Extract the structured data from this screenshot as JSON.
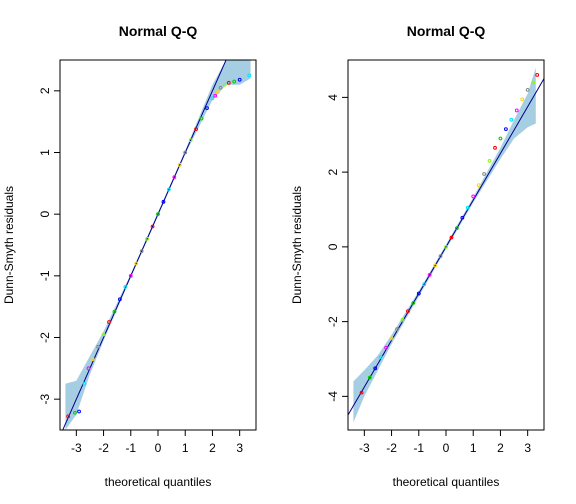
{
  "colors": {
    "band": "#a6cee3",
    "line": "#00008b",
    "points": [
      "#ff0000",
      "#00cc00",
      "#0000ff",
      "#00e5ff",
      "#ff00ff",
      "#ffd700",
      "#888888",
      "#7fff00"
    ]
  },
  "chart_data": [
    {
      "type": "scatter",
      "title": "Normal Q-Q",
      "xlabel": "theoretical quantiles",
      "ylabel": "Dunn-Smyth residuals",
      "xlim": [
        -3.6,
        3.6
      ],
      "ylim": [
        -3.5,
        2.5
      ],
      "xticks": [
        -3,
        -2,
        -1,
        0,
        1,
        2,
        3
      ],
      "yticks": [
        -3,
        -2,
        -1,
        0,
        1,
        2
      ],
      "xtick_labels": [
        "-3",
        "-2",
        "-1",
        "0",
        "1",
        "2",
        "3"
      ],
      "ytick_labels": [
        "-3",
        "-2",
        "-1",
        "0",
        "1",
        "2"
      ],
      "reference_line": {
        "intercept": 0.0,
        "slope": 1.0
      },
      "envelope": [
        {
          "x": -3.4,
          "lo": -3.5,
          "hi": -2.75
        },
        {
          "x": -3.0,
          "lo": -3.25,
          "hi": -2.7
        },
        {
          "x": -2.5,
          "lo": -2.6,
          "hi": -2.3
        },
        {
          "x": -2.0,
          "lo": -2.05,
          "hi": -1.9
        },
        {
          "x": -1.0,
          "lo": -1.03,
          "hi": -0.97
        },
        {
          "x": 0.0,
          "lo": -0.03,
          "hi": 0.03
        },
        {
          "x": 1.0,
          "lo": 0.97,
          "hi": 1.03
        },
        {
          "x": 2.0,
          "lo": 1.85,
          "hi": 2.1
        },
        {
          "x": 2.5,
          "lo": 2.1,
          "hi": 2.5
        },
        {
          "x": 3.0,
          "lo": 2.1,
          "hi": 2.5
        },
        {
          "x": 3.4,
          "lo": 2.2,
          "hi": 2.5
        }
      ],
      "points": {
        "x": [
          -3.3,
          -3.05,
          -2.9,
          -2.7,
          -2.55,
          -2.4,
          -2.2,
          -2.0,
          -1.8,
          -1.6,
          -1.4,
          -1.2,
          -1.0,
          -0.8,
          -0.6,
          -0.4,
          -0.2,
          0.0,
          0.2,
          0.4,
          0.6,
          0.8,
          1.0,
          1.2,
          1.4,
          1.6,
          1.8,
          2.0,
          2.1,
          2.2,
          2.3,
          2.45,
          2.6,
          2.8,
          3.0,
          3.35
        ],
        "y": [
          -3.28,
          -3.22,
          -3.2,
          -2.75,
          -2.5,
          -2.35,
          -2.15,
          -1.95,
          -1.75,
          -1.58,
          -1.38,
          -1.18,
          -1.0,
          -0.8,
          -0.6,
          -0.4,
          -0.2,
          0.0,
          0.2,
          0.4,
          0.6,
          0.8,
          1.0,
          1.2,
          1.38,
          1.55,
          1.72,
          1.88,
          1.92,
          1.98,
          2.05,
          2.1,
          2.13,
          2.15,
          2.18,
          2.25
        ]
      }
    },
    {
      "type": "scatter",
      "title": "Normal Q-Q",
      "xlabel": "theoretical quantiles",
      "ylabel": "Dunn-Smyth residuals",
      "xlim": [
        -3.6,
        3.6
      ],
      "ylim": [
        -4.9,
        5.0
      ],
      "xticks": [
        -3,
        -2,
        -1,
        0,
        1,
        2,
        3
      ],
      "yticks": [
        -4,
        -2,
        0,
        2,
        4
      ],
      "xtick_labels": [
        "-3",
        "-2",
        "-1",
        "0",
        "1",
        "2",
        "3"
      ],
      "ytick_labels": [
        "-4",
        "-2",
        "0",
        "2",
        "4"
      ],
      "reference_line": {
        "intercept": 0.0,
        "slope": 1.25
      },
      "envelope": [
        {
          "x": -3.4,
          "lo": -4.7,
          "hi": -3.6
        },
        {
          "x": -3.0,
          "lo": -4.0,
          "hi": -3.3
        },
        {
          "x": -2.5,
          "lo": -3.3,
          "hi": -2.9
        },
        {
          "x": -2.0,
          "lo": -2.6,
          "hi": -2.35
        },
        {
          "x": -1.0,
          "lo": -1.33,
          "hi": -1.18
        },
        {
          "x": 0.0,
          "lo": -0.06,
          "hi": 0.06
        },
        {
          "x": 1.0,
          "lo": 1.18,
          "hi": 1.33
        },
        {
          "x": 2.0,
          "lo": 2.35,
          "hi": 2.65
        },
        {
          "x": 2.5,
          "lo": 2.9,
          "hi": 3.4
        },
        {
          "x": 3.0,
          "lo": 3.2,
          "hi": 4.1
        },
        {
          "x": 3.3,
          "lo": 3.3,
          "hi": 4.8
        }
      ],
      "points": {
        "x": [
          -3.1,
          -2.8,
          -2.6,
          -2.4,
          -2.2,
          -2.0,
          -1.8,
          -1.6,
          -1.4,
          -1.2,
          -1.0,
          -0.8,
          -0.6,
          -0.4,
          -0.2,
          0.0,
          0.2,
          0.4,
          0.6,
          0.8,
          1.0,
          1.2,
          1.4,
          1.6,
          1.8,
          2.0,
          2.2,
          2.4,
          2.6,
          2.8,
          3.0,
          3.2,
          3.35
        ],
        "y": [
          -3.9,
          -3.5,
          -3.25,
          -2.95,
          -2.7,
          -2.45,
          -2.2,
          -1.95,
          -1.72,
          -1.5,
          -1.25,
          -1.0,
          -0.75,
          -0.5,
          -0.25,
          0.0,
          0.25,
          0.5,
          0.78,
          1.05,
          1.35,
          1.65,
          1.95,
          2.3,
          2.65,
          2.9,
          3.15,
          3.4,
          3.65,
          3.95,
          4.2,
          4.4,
          4.6
        ]
      }
    }
  ]
}
